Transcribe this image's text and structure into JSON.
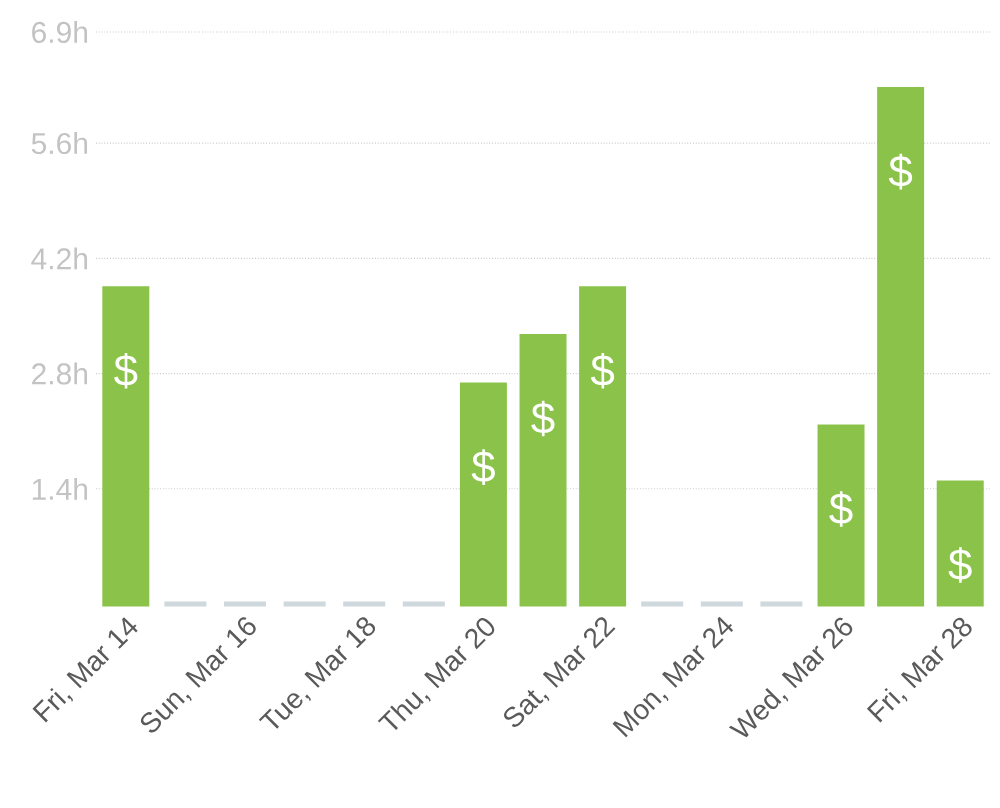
{
  "chart_data": {
    "type": "bar",
    "categories": [
      "Fri, Mar 14",
      null,
      "Sun, Mar 16",
      null,
      "Tue, Mar 18",
      null,
      "Thu, Mar 20",
      null,
      "Sat, Mar 22",
      null,
      "Mon, Mar 24",
      null,
      "Wed, Mar 26",
      null,
      "Fri, Mar 28"
    ],
    "values": [
      3.83,
      0,
      0,
      0,
      0,
      0,
      2.66,
      3.25,
      3.83,
      0,
      0,
      0,
      2.15,
      6.25,
      1.47
    ],
    "colors": [
      "#8bc34a",
      "#cfd8dc",
      "#cfd8dc",
      "#cfd8dc",
      "#cfd8dc",
      "#cfd8dc",
      "#8bc34a",
      "#8bc34a",
      "#8bc34a",
      "#cfd8dc",
      "#cfd8dc",
      "#cfd8dc",
      "#8bc34a",
      "#8bc34a",
      "#8bc34a"
    ],
    "value_labels": [
      "$",
      null,
      null,
      null,
      null,
      null,
      "$",
      "$",
      "$",
      null,
      null,
      null,
      "$",
      "$",
      "$"
    ],
    "ylim": [
      0,
      6.95
    ],
    "yticks": [
      {
        "value": 1.4,
        "label": "1.4h"
      },
      {
        "value": 2.8,
        "label": "2.8h"
      },
      {
        "value": 4.2,
        "label": "4.2h"
      },
      {
        "value": 5.6,
        "label": "5.6h"
      },
      {
        "value": 6.95,
        "label": "6.9h"
      }
    ],
    "grid": "y"
  }
}
